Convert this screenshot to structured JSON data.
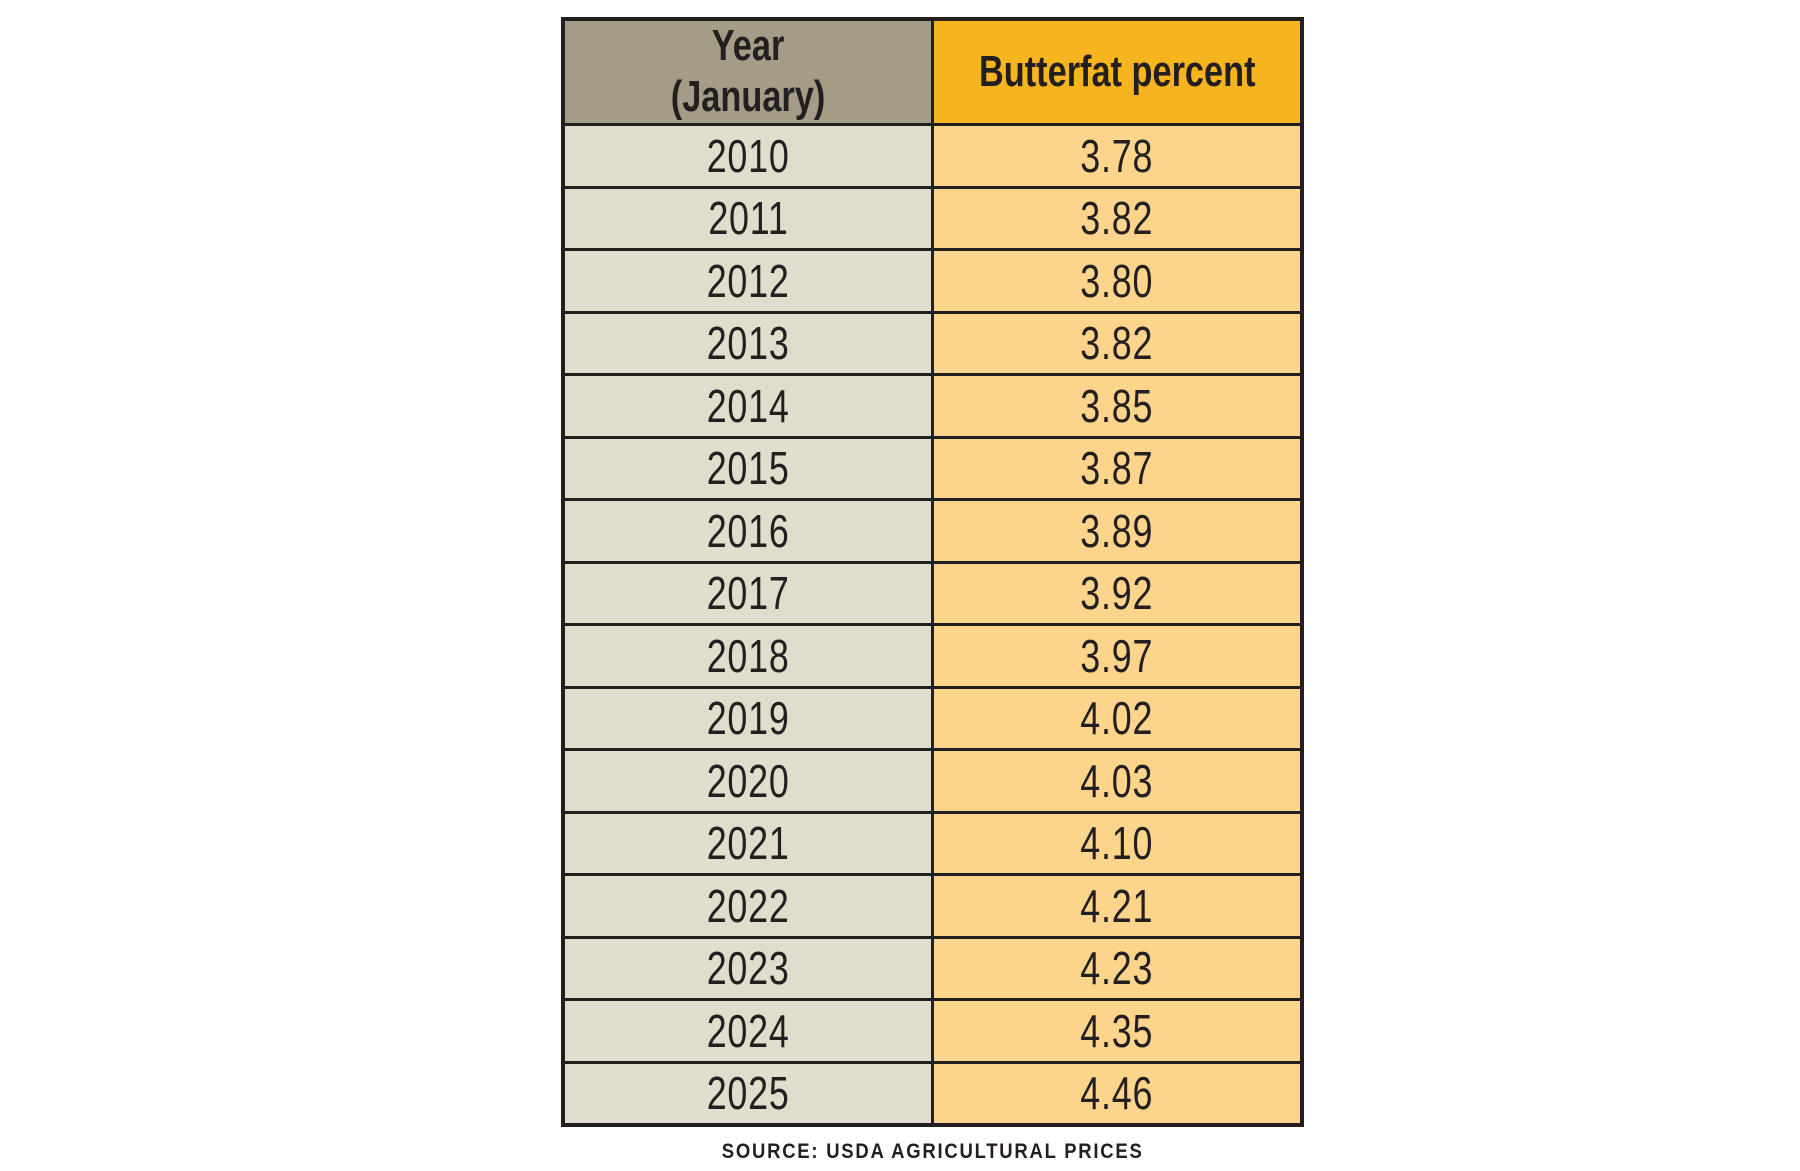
{
  "header": {
    "year_label_line1": "Year",
    "year_label_line2": "(January)",
    "value_label": "Butterfat percent"
  },
  "rows": [
    {
      "year": "2010",
      "value": "3.78"
    },
    {
      "year": "2011",
      "value": "3.82"
    },
    {
      "year": "2012",
      "value": "3.80"
    },
    {
      "year": "2013",
      "value": "3.82"
    },
    {
      "year": "2014",
      "value": "3.85"
    },
    {
      "year": "2015",
      "value": "3.87"
    },
    {
      "year": "2016",
      "value": "3.89"
    },
    {
      "year": "2017",
      "value": "3.92"
    },
    {
      "year": "2018",
      "value": "3.97"
    },
    {
      "year": "2019",
      "value": "4.02"
    },
    {
      "year": "2020",
      "value": "4.03"
    },
    {
      "year": "2021",
      "value": "4.10"
    },
    {
      "year": "2022",
      "value": "4.21"
    },
    {
      "year": "2023",
      "value": "4.23"
    },
    {
      "year": "2024",
      "value": "4.35"
    },
    {
      "year": "2025",
      "value": "4.46"
    }
  ],
  "source": "SOURCE: USDA AGRICULTURAL PRICES",
  "colors": {
    "header_year_bg": "#a49c86",
    "header_value_bg": "#f6b41e",
    "cell_year_bg": "#e0ddcc",
    "cell_value_bg": "#fcd48c",
    "border": "#231f20",
    "text": "#231f20"
  },
  "chart_data": {
    "type": "table",
    "title": "",
    "columns": [
      "Year (January)",
      "Butterfat percent"
    ],
    "x": [
      2010,
      2011,
      2012,
      2013,
      2014,
      2015,
      2016,
      2017,
      2018,
      2019,
      2020,
      2021,
      2022,
      2023,
      2024,
      2025
    ],
    "values": [
      3.78,
      3.82,
      3.8,
      3.82,
      3.85,
      3.87,
      3.89,
      3.92,
      3.97,
      4.02,
      4.03,
      4.1,
      4.21,
      4.23,
      4.35,
      4.46
    ],
    "source": "SOURCE: USDA AGRICULTURAL PRICES"
  }
}
